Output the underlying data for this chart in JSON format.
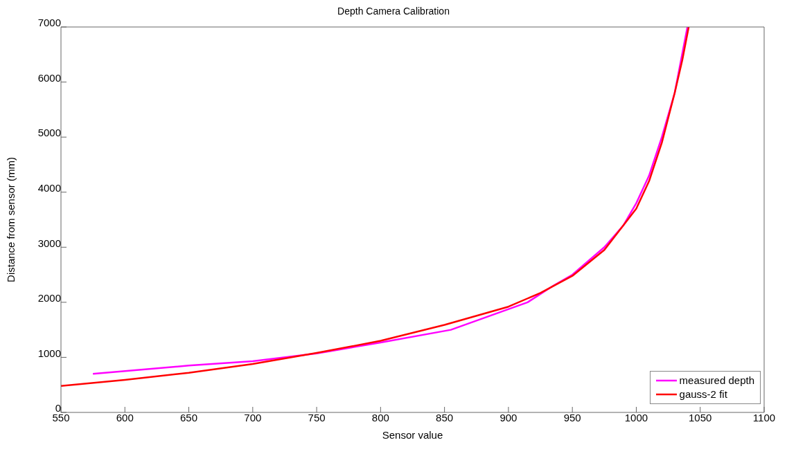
{
  "chart_data": {
    "type": "line",
    "title": "Depth Camera Calibration",
    "xlabel": "Sensor value",
    "ylabel": "Distance from sensor (mm)",
    "series": [
      {
        "name": "measured depth",
        "color": "#ff00ff",
        "x": [
          575,
          650,
          700,
          750,
          800,
          855,
          915,
          935,
          950,
          975,
          990,
          1000,
          1010,
          1020,
          1030,
          1040
        ],
        "values": [
          700,
          850,
          930,
          1070,
          1270,
          1500,
          2000,
          2300,
          2500,
          3000,
          3400,
          3800,
          4300,
          5000,
          5800,
          7000
        ]
      },
      {
        "name": "gauss-2 fit",
        "color": "#ff0000",
        "x": [
          550,
          600,
          650,
          700,
          750,
          800,
          850,
          900,
          925,
          950,
          975,
          1000,
          1010,
          1020,
          1030,
          1036,
          1041
        ],
        "values": [
          480,
          590,
          720,
          880,
          1080,
          1300,
          1590,
          1920,
          2170,
          2480,
          2950,
          3700,
          4200,
          4900,
          5800,
          6400,
          7000
        ]
      }
    ],
    "xlim": [
      550,
      1100
    ],
    "xticks": [
      550,
      600,
      650,
      700,
      750,
      800,
      850,
      900,
      950,
      1000,
      1050,
      1100
    ],
    "ylim": [
      0,
      7000
    ],
    "yticks": [
      0,
      1000,
      2000,
      3000,
      4000,
      5000,
      6000,
      7000
    ],
    "grid": false,
    "legend": "bottom right",
    "marker": "none",
    "line_style": "solid"
  }
}
